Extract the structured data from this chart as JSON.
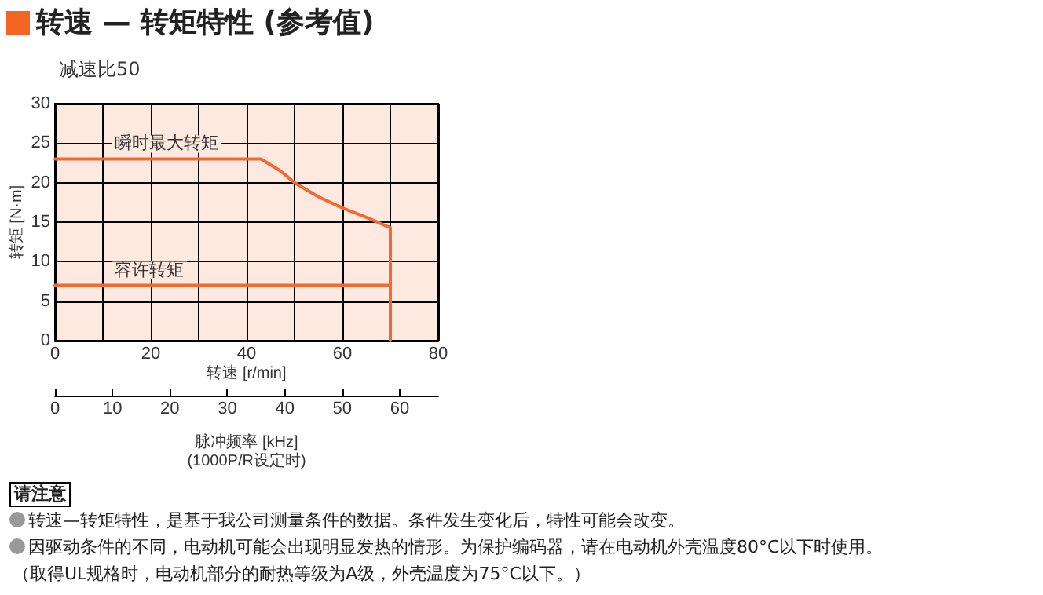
{
  "chart_data": {
    "type": "line",
    "title": "转速 — 转矩特性 (参考值)",
    "subtitle": "减速比50",
    "xlabel": "转速 [r/min]",
    "ylabel": "转矩 [N·m]",
    "x2label": "脉冲频率 [kHz]\n(1000P/R设定时)",
    "xlim": [
      0,
      80
    ],
    "xticks": [
      0,
      {
        "value": 10,
        "label": null
      },
      20,
      {
        "value": 30,
        "label": null
      },
      40,
      {
        "value": 50,
        "label": null
      },
      60,
      {
        "value": 70,
        "label": null
      },
      80
    ],
    "ylim": [
      0,
      30
    ],
    "yticks": [
      0,
      5,
      10,
      15,
      20,
      25,
      30
    ],
    "x2lim": [
      0,
      66.7
    ],
    "x2ticks": [
      0,
      10,
      20,
      30,
      40,
      50,
      60
    ],
    "grid": true,
    "marker": "none",
    "line_style": "solid",
    "series": [
      {
        "name": "瞬时最大转矩",
        "color": "#f26a30",
        "x": [
          0,
          43,
          47,
          50,
          55,
          60,
          65,
          70,
          70
        ],
        "values": [
          23,
          23,
          21.5,
          20,
          18.2,
          16.8,
          15.6,
          14.3,
          0
        ]
      },
      {
        "name": "容许转矩",
        "color": "#f26a30",
        "x": [
          0,
          70
        ],
        "values": [
          7,
          7
        ]
      }
    ],
    "annotations": [
      "请注意",
      "转速—转矩特性，是基于我公司测量条件的数据。条件发生变化后，特性可能会改变。",
      "因驱动条件的不同，电动机可能会出现明显发热的情形。为保护编码器，请在电动机外壳温度80°C以下时使用。",
      "（取得UL规格时，电动机部分的耐热等级为A级，外壳温度为75°C以下。）"
    ]
  }
}
